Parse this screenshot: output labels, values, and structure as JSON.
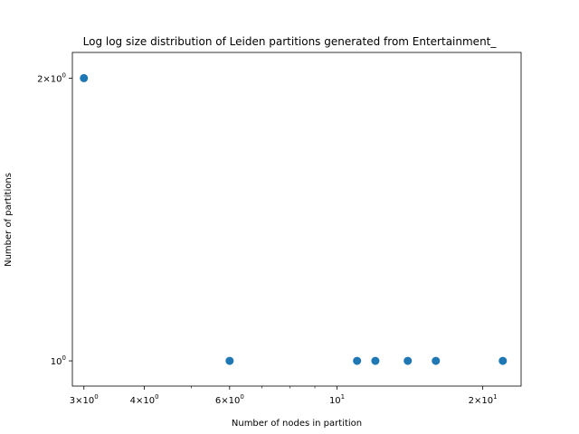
{
  "chart_data": {
    "type": "scatter",
    "title": "Log log size distribution of Leiden partitions generated from Entertainment_",
    "xlabel": "Number of nodes in partition",
    "ylabel": "Number of partitions",
    "xscale": "log",
    "yscale": "log",
    "xlim": [
      2.84,
      24.0
    ],
    "ylim": [
      0.94,
      2.13
    ],
    "grid": false,
    "point_color": "#1f77b4",
    "x_ticks": [
      {
        "value": 3,
        "base": "3×10",
        "exp": "0"
      },
      {
        "value": 4,
        "base": "4×10",
        "exp": "0"
      },
      {
        "value": 6,
        "base": "6×10",
        "exp": "0"
      },
      {
        "value": 10,
        "base": "10",
        "exp": "1"
      },
      {
        "value": 20,
        "base": "2×10",
        "exp": "1"
      }
    ],
    "x_minor_ticks": [
      5,
      7,
      8,
      9
    ],
    "y_ticks": [
      {
        "value": 1,
        "base": "10",
        "exp": "0"
      },
      {
        "value": 2,
        "base": "2×10",
        "exp": "0"
      }
    ],
    "points": [
      {
        "x": 3,
        "y": 2
      },
      {
        "x": 6,
        "y": 1
      },
      {
        "x": 11,
        "y": 1
      },
      {
        "x": 12,
        "y": 1
      },
      {
        "x": 14,
        "y": 1
      },
      {
        "x": 16,
        "y": 1
      },
      {
        "x": 22,
        "y": 1
      }
    ]
  }
}
